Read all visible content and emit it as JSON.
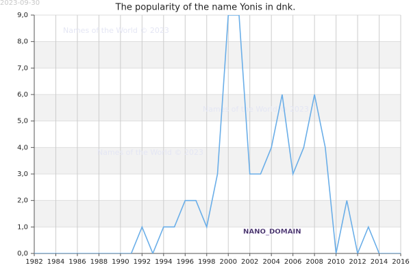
{
  "chart_data": {
    "type": "line",
    "title": "The popularity of the name Yonis in dnk.",
    "x": [
      1982,
      1983,
      1984,
      1985,
      1986,
      1987,
      1988,
      1989,
      1990,
      1991,
      1992,
      1993,
      1994,
      1995,
      1996,
      1997,
      1998,
      1999,
      2000,
      2001,
      2002,
      2003,
      2004,
      2005,
      2006,
      2007,
      2008,
      2009,
      2010,
      2011,
      2012,
      2013,
      2014,
      2015,
      2016
    ],
    "series": [
      {
        "name": "Yonis",
        "color": "#6aaee8",
        "values": [
          0,
          0,
          0,
          0,
          0,
          0,
          0,
          0,
          0,
          0,
          1,
          0,
          1,
          1,
          2,
          2,
          1,
          3,
          9,
          9,
          3,
          3,
          4,
          6,
          3,
          4,
          6,
          4,
          0,
          2,
          0,
          1,
          0,
          0,
          0
        ]
      }
    ],
    "xlim": [
      1982,
      2016
    ],
    "xticks": [
      1982,
      1984,
      1986,
      1988,
      1990,
      1992,
      1994,
      1996,
      1998,
      2000,
      2002,
      2004,
      2006,
      2008,
      2010,
      2012,
      2014,
      2016
    ],
    "ylim": [
      0,
      9
    ],
    "yticks": [
      {
        "value": 0,
        "label": "0,0"
      },
      {
        "value": 1,
        "label": "1,0"
      },
      {
        "value": 2,
        "label": "2,0"
      },
      {
        "value": 3,
        "label": "3,0"
      },
      {
        "value": 4,
        "label": "4,0"
      },
      {
        "value": 5,
        "label": "5,0"
      },
      {
        "value": 6,
        "label": "6,0"
      },
      {
        "value": 7,
        "label": "7,0"
      },
      {
        "value": 8,
        "label": "8,0"
      },
      {
        "value": 9,
        "label": "9,0"
      }
    ],
    "grid": true,
    "annotations": [
      "2023-09-30",
      "Names of the World © 2023",
      "NANO_DOMAIN"
    ]
  }
}
